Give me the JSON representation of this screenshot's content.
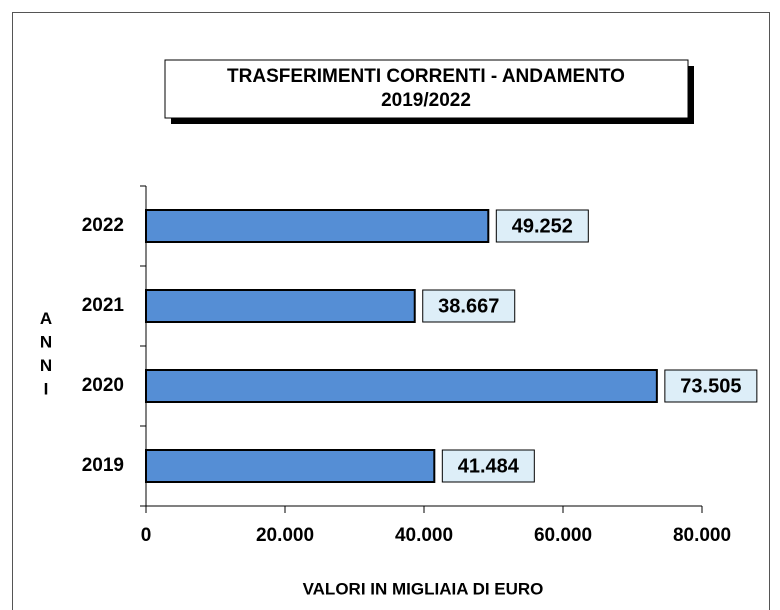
{
  "chart_data": {
    "type": "bar",
    "orientation": "horizontal",
    "title": [
      "TRASFERIMENTI  CORRENTI - ANDAMENTO",
      "2019/2022"
    ],
    "x_label": "VALORI IN MIGLIAIA DI EURO",
    "y_label": "ANNI",
    "categories": [
      "2019",
      "2020",
      "2021",
      "2022"
    ],
    "values": [
      41484,
      73505,
      38667,
      49252
    ],
    "value_labels": [
      "41.484",
      "73.505",
      "38.667",
      "49.252"
    ],
    "color": "#558ed5",
    "xlim": [
      0,
      80000
    ],
    "xticks": [
      0,
      {
        "value": 20000,
        "label": "20.000"
      },
      {
        "value": 40000,
        "label": "40.000"
      },
      {
        "value": 60000,
        "label": "60.000"
      },
      {
        "value": 80000,
        "label": "80.000"
      }
    ],
    "grid": false
  }
}
